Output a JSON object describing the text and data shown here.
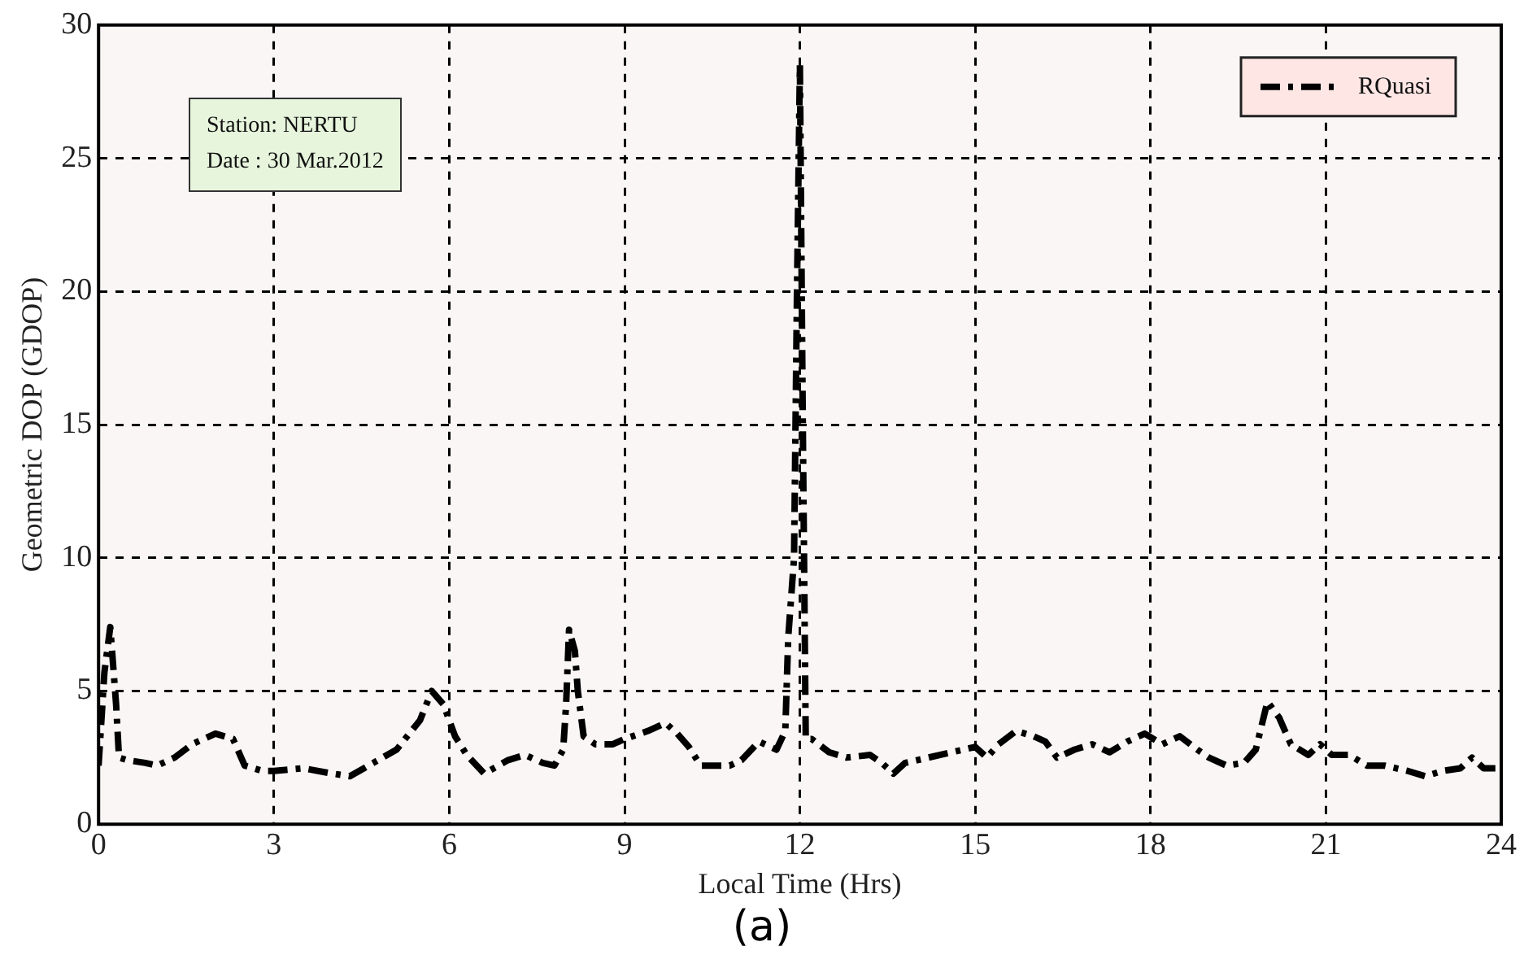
{
  "chart_data": {
    "type": "line",
    "xlabel": "Local Time (Hrs)",
    "ylabel": "Geometric DOP (GDOP)",
    "annotations": [
      "Station: NERTU",
      "Date : 30 Mar.2012",
      "(a)"
    ],
    "x": [
      0,
      0.1,
      0.2,
      0.3,
      0.35,
      0.5,
      0.8,
      1.0,
      1.3,
      1.6,
      2.0,
      2.3,
      2.5,
      2.8,
      3.0,
      3.5,
      4.0,
      4.3,
      4.7,
      5.1,
      5.5,
      5.7,
      5.9,
      6.1,
      6.3,
      6.6,
      7.0,
      7.3,
      7.6,
      7.8,
      7.95,
      8.0,
      8.05,
      8.15,
      8.2,
      8.3,
      8.5,
      8.8,
      9.0,
      9.4,
      9.7,
      9.9,
      10.1,
      10.3,
      10.8,
      11.0,
      11.3,
      11.6,
      11.75,
      11.8,
      11.9,
      11.95,
      12.0,
      12.05,
      12.1,
      12.2,
      12.5,
      12.8,
      13.2,
      13.4,
      13.6,
      13.8,
      14.2,
      14.6,
      15.0,
      15.2,
      15.4,
      15.7,
      16.0,
      16.2,
      16.4,
      16.7,
      17.0,
      17.3,
      17.6,
      17.9,
      18.2,
      18.5,
      18.8,
      19.0,
      19.3,
      19.6,
      19.8,
      20.0,
      20.2,
      20.4,
      20.7,
      20.9,
      21.1,
      21.4,
      21.7,
      22.0,
      22.4,
      22.7,
      23.0,
      23.3,
      23.5,
      23.7,
      23.9
    ],
    "series": [
      {
        "name": "RQuasi",
        "color": "#000000",
        "line_style": "dashdot",
        "values": [
          2.2,
          5.7,
          7.4,
          4.5,
          2.5,
          2.4,
          2.3,
          2.2,
          2.5,
          3.0,
          3.4,
          3.2,
          2.2,
          2.0,
          2.0,
          2.1,
          1.9,
          1.8,
          2.3,
          2.8,
          3.9,
          5.0,
          4.5,
          3.3,
          2.6,
          1.9,
          2.4,
          2.6,
          2.3,
          2.2,
          2.8,
          4.5,
          7.3,
          6.5,
          5.0,
          3.3,
          3.0,
          3.0,
          3.2,
          3.5,
          3.8,
          3.4,
          2.9,
          2.2,
          2.2,
          2.4,
          3.1,
          2.8,
          3.5,
          7.0,
          10,
          20,
          28.5,
          15,
          3.2,
          3.2,
          2.7,
          2.5,
          2.6,
          2.3,
          1.9,
          2.3,
          2.5,
          2.7,
          2.9,
          2.5,
          3.0,
          3.5,
          3.3,
          3.1,
          2.5,
          2.8,
          3.0,
          2.7,
          3.1,
          3.4,
          3.0,
          3.3,
          2.8,
          2.5,
          2.2,
          2.3,
          2.8,
          4.6,
          4.0,
          3.0,
          2.6,
          3.0,
          2.6,
          2.6,
          2.2,
          2.2,
          2.0,
          1.8,
          2.0,
          2.1,
          2.5,
          2.1,
          2.1
        ]
      }
    ],
    "xlim": [
      0,
      24
    ],
    "xticks": [
      0,
      3,
      6,
      9,
      12,
      15,
      18,
      21,
      24
    ],
    "ylim": [
      0,
      30
    ],
    "yticks": [
      0,
      5,
      10,
      15,
      20,
      25,
      30
    ],
    "grid": true,
    "legend": "top right",
    "marker": "none"
  }
}
